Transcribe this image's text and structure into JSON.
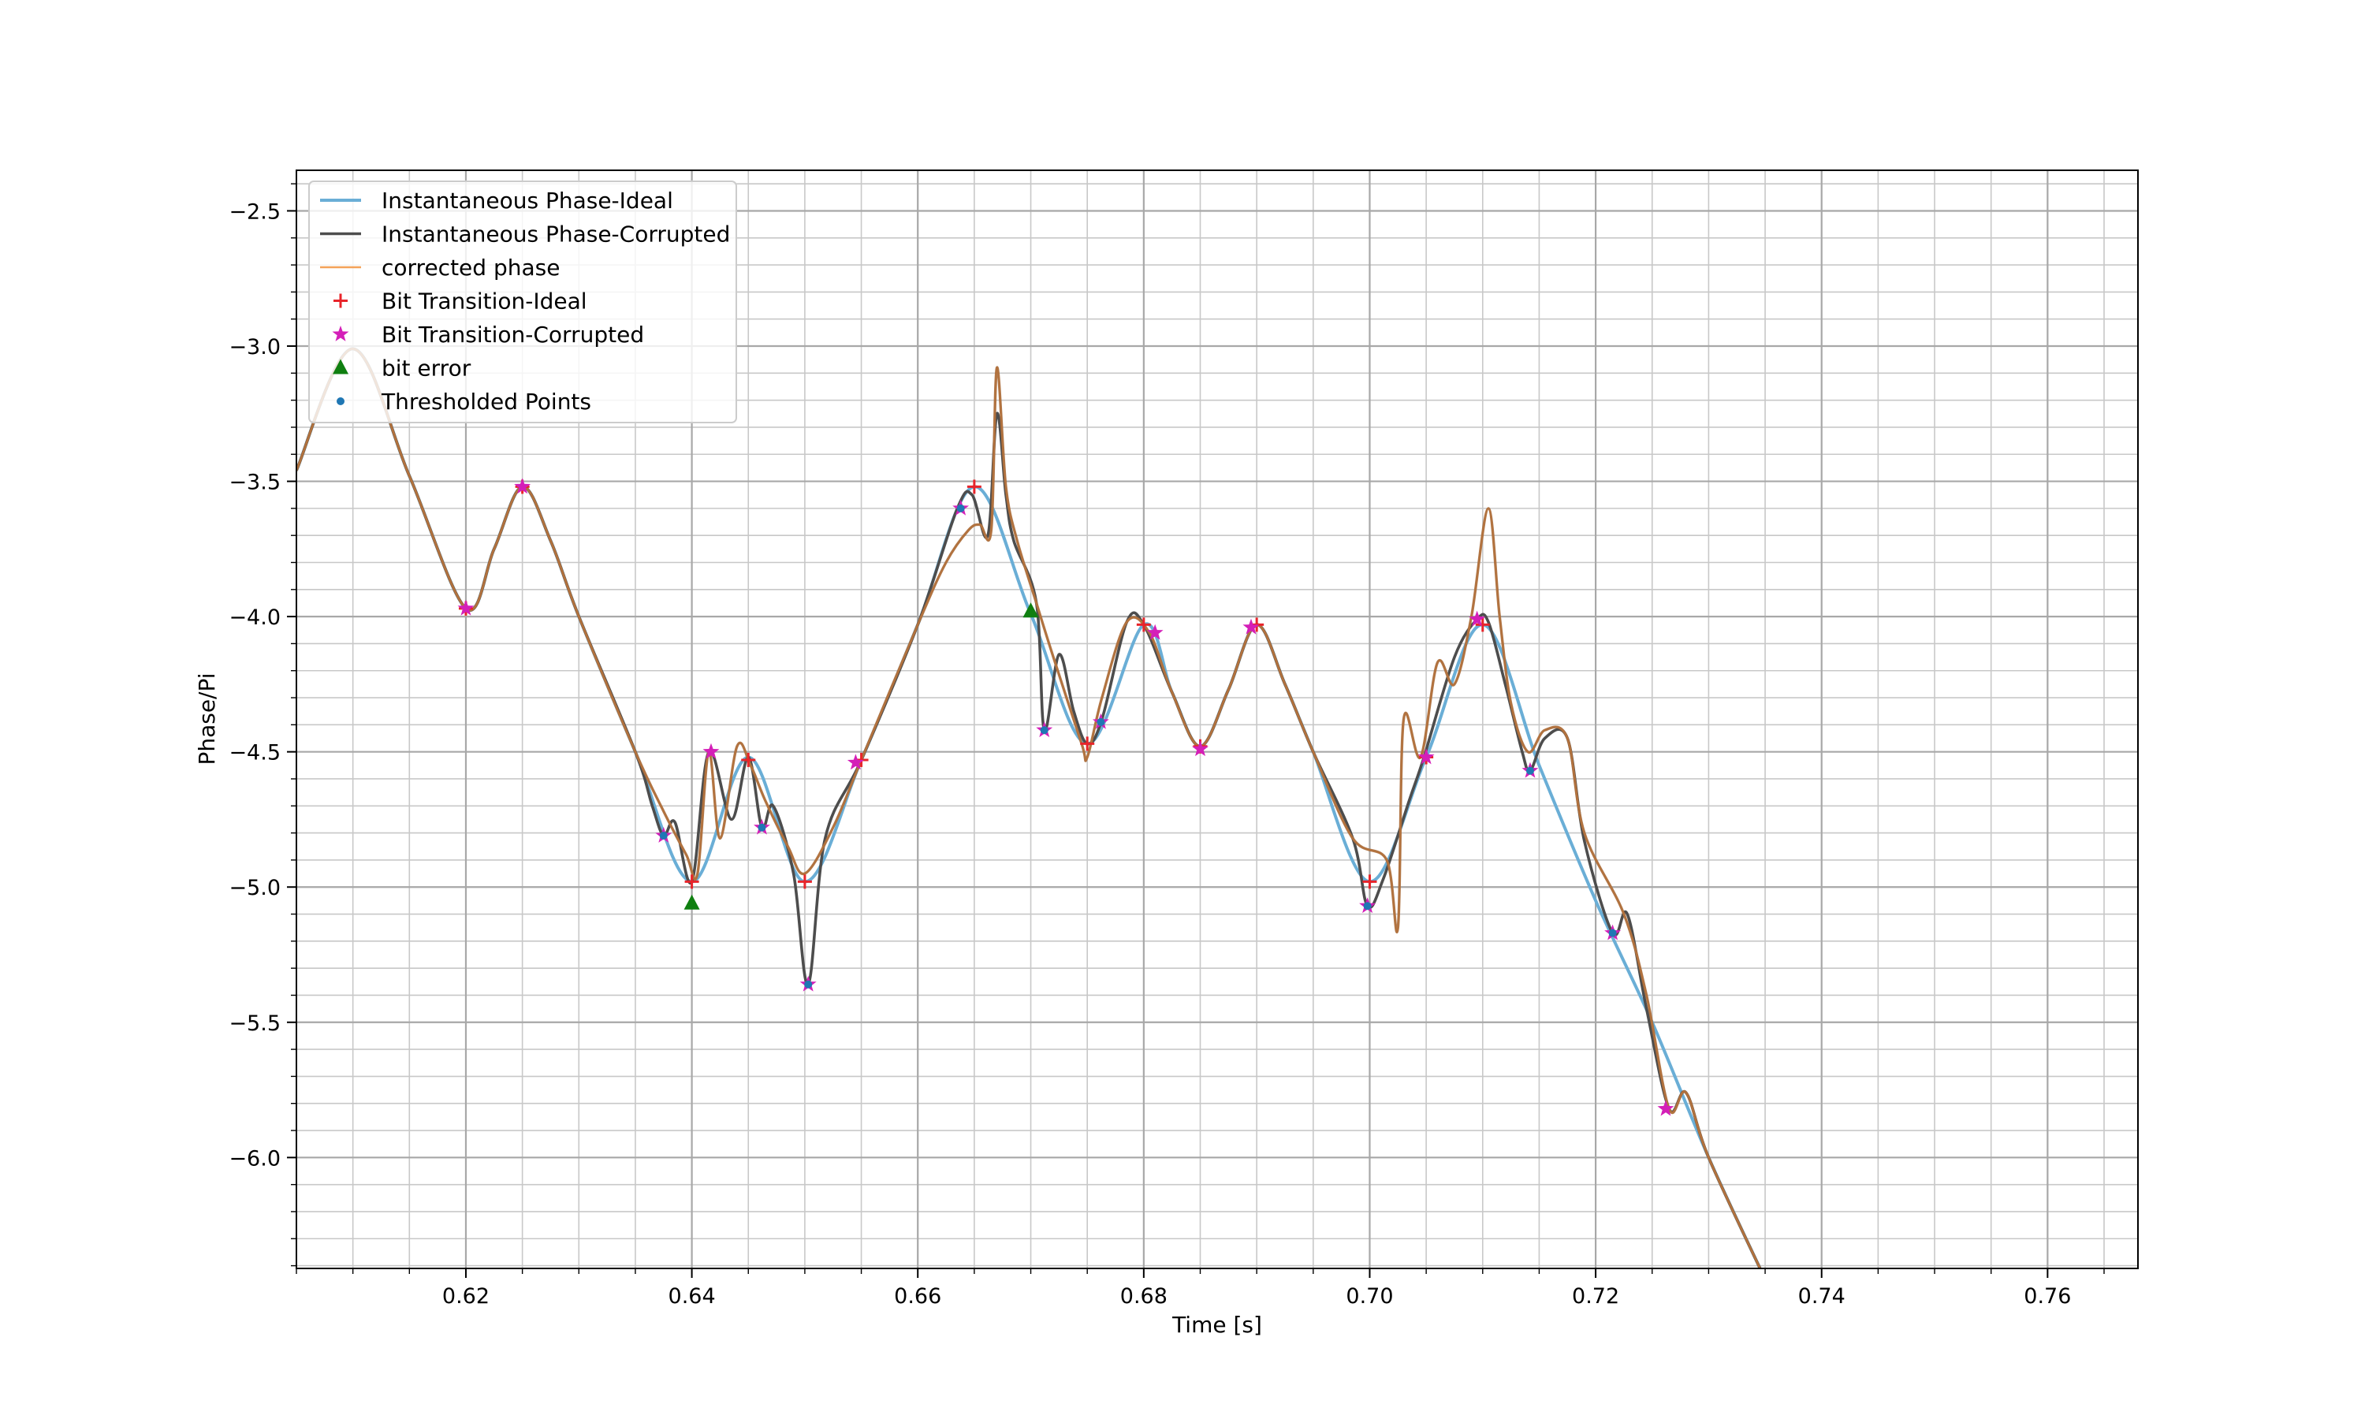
{
  "chart_data": {
    "type": "line",
    "title": "",
    "xlabel": "Time [s]",
    "ylabel": "Phase/Pi",
    "xlim": [
      0.605,
      0.768
    ],
    "ylim": [
      -6.41,
      -2.35
    ],
    "xticks": [
      0.62,
      0.64,
      0.66,
      0.68,
      0.7,
      0.72,
      0.74,
      0.76
    ],
    "xtick_labels": [
      "0.62",
      "0.64",
      "0.66",
      "0.68",
      "0.70",
      "0.72",
      "0.74",
      "0.76"
    ],
    "yticks": [
      -2.5,
      -3.0,
      -3.5,
      -4.0,
      -4.5,
      -5.0,
      -5.5,
      -6.0
    ],
    "ytick_labels": [
      "−2.5",
      "−3.0",
      "−3.5",
      "−4.0",
      "−4.5",
      "−5.0",
      "−5.5",
      "−6.0"
    ],
    "grid": "major and minor",
    "legend_position": "upper-left",
    "series": [
      {
        "name": "Instantaneous Phase-Ideal",
        "kind": "line",
        "color": "#6aaed6",
        "x": [
          0.605,
          0.61,
          0.615,
          0.62,
          0.6225,
          0.625,
          0.6275,
          0.63,
          0.635,
          0.64,
          0.645,
          0.65,
          0.655,
          0.66,
          0.665,
          0.67,
          0.675,
          0.68,
          0.6825,
          0.685,
          0.6875,
          0.69,
          0.6925,
          0.695,
          0.7,
          0.705,
          0.71,
          0.715,
          0.72,
          0.725,
          0.73,
          0.735
        ],
        "y": [
          -3.46,
          -3.01,
          -3.48,
          -3.97,
          -3.75,
          -3.52,
          -3.72,
          -4.0,
          -4.5,
          -4.98,
          -4.52,
          -4.98,
          -4.53,
          -4.03,
          -3.52,
          -3.99,
          -4.47,
          -4.03,
          -4.28,
          -4.48,
          -4.27,
          -4.03,
          -4.25,
          -4.5,
          -4.98,
          -4.52,
          -4.03,
          -4.55,
          -5.05,
          -5.5,
          -6.0,
          -6.45
        ]
      },
      {
        "name": "Instantaneous Phase-Corrupted",
        "kind": "line",
        "color": "#4d4d4d",
        "x": [
          0.605,
          0.61,
          0.615,
          0.62,
          0.6225,
          0.625,
          0.6275,
          0.63,
          0.635,
          0.6365,
          0.6375,
          0.6385,
          0.64,
          0.6415,
          0.6435,
          0.645,
          0.6462,
          0.6472,
          0.649,
          0.6503,
          0.6518,
          0.655,
          0.66,
          0.6635,
          0.6648,
          0.6662,
          0.667,
          0.6678,
          0.6685,
          0.6705,
          0.6712,
          0.6725,
          0.6738,
          0.675,
          0.6763,
          0.6785,
          0.68,
          0.6825,
          0.685,
          0.6875,
          0.69,
          0.6925,
          0.695,
          0.6985,
          0.6998,
          0.7012,
          0.7035,
          0.7048,
          0.7075,
          0.7095,
          0.7105,
          0.712,
          0.7135,
          0.7142,
          0.7155,
          0.7175,
          0.719,
          0.7215,
          0.7228,
          0.7245,
          0.7265,
          0.728,
          0.73,
          0.735
        ],
        "y": [
          -3.46,
          -3.01,
          -3.48,
          -3.97,
          -3.75,
          -3.52,
          -3.72,
          -4.0,
          -4.5,
          -4.7,
          -4.81,
          -4.76,
          -4.98,
          -4.5,
          -4.75,
          -4.52,
          -4.78,
          -4.7,
          -4.95,
          -5.36,
          -4.82,
          -4.53,
          -4.03,
          -3.6,
          -3.55,
          -3.7,
          -3.25,
          -3.55,
          -3.72,
          -3.95,
          -4.42,
          -4.14,
          -4.35,
          -4.47,
          -4.38,
          -4.02,
          -4.03,
          -4.28,
          -4.48,
          -4.27,
          -4.03,
          -4.25,
          -4.5,
          -4.82,
          -5.07,
          -4.97,
          -4.68,
          -4.52,
          -4.15,
          -4.01,
          -4.02,
          -4.25,
          -4.5,
          -4.57,
          -4.45,
          -4.45,
          -4.83,
          -5.17,
          -5.1,
          -5.45,
          -5.82,
          -5.76,
          -6.0,
          -6.45
        ]
      },
      {
        "name": "corrected phase",
        "kind": "line",
        "color": "#f4a259",
        "x": [
          0.605,
          0.61,
          0.615,
          0.62,
          0.6225,
          0.625,
          0.6275,
          0.63,
          0.635,
          0.6375,
          0.6395,
          0.6405,
          0.6415,
          0.6425,
          0.644,
          0.6452,
          0.6465,
          0.6485,
          0.65,
          0.6525,
          0.655,
          0.66,
          0.6625,
          0.6645,
          0.6655,
          0.6665,
          0.667,
          0.6678,
          0.6688,
          0.6705,
          0.672,
          0.6745,
          0.675,
          0.6763,
          0.6785,
          0.6805,
          0.6825,
          0.685,
          0.6875,
          0.69,
          0.6925,
          0.695,
          0.6985,
          0.7015,
          0.7025,
          0.703,
          0.7045,
          0.706,
          0.7075,
          0.709,
          0.7105,
          0.7115,
          0.7125,
          0.714,
          0.7155,
          0.7175,
          0.719,
          0.7225,
          0.7245,
          0.7265,
          0.728,
          0.73,
          0.735
        ],
        "y": [
          -3.46,
          -3.01,
          -3.48,
          -3.97,
          -3.75,
          -3.52,
          -3.72,
          -4.0,
          -4.5,
          -4.72,
          -4.88,
          -4.95,
          -4.5,
          -4.82,
          -4.48,
          -4.55,
          -4.68,
          -4.85,
          -4.95,
          -4.78,
          -4.53,
          -4.03,
          -3.8,
          -3.68,
          -3.66,
          -3.68,
          -3.08,
          -3.52,
          -3.72,
          -3.95,
          -4.15,
          -4.47,
          -4.52,
          -4.3,
          -4.02,
          -4.06,
          -4.28,
          -4.48,
          -4.27,
          -4.03,
          -4.25,
          -4.5,
          -4.82,
          -4.9,
          -5.15,
          -4.38,
          -4.52,
          -4.17,
          -4.25,
          -4.0,
          -3.6,
          -4.0,
          -4.32,
          -4.5,
          -4.42,
          -4.45,
          -4.8,
          -5.1,
          -5.4,
          -5.82,
          -5.76,
          -6.0,
          -6.45
        ]
      },
      {
        "name": "Bit Transition-Ideal",
        "kind": "markers",
        "marker": "plus",
        "color": "#e8242a",
        "x": [
          0.62,
          0.625,
          0.64,
          0.645,
          0.65,
          0.655,
          0.665,
          0.675,
          0.68,
          0.685,
          0.69,
          0.7,
          0.705,
          0.71
        ],
        "y": [
          -3.97,
          -3.52,
          -4.98,
          -4.53,
          -4.98,
          -4.53,
          -3.52,
          -4.47,
          -4.03,
          -4.48,
          -4.03,
          -4.98,
          -4.52,
          -4.03
        ]
      },
      {
        "name": "Bit Transition-Corrupted",
        "kind": "markers",
        "marker": "star",
        "color": "#d41fb8",
        "x": [
          0.62,
          0.625,
          0.6375,
          0.6417,
          0.6462,
          0.6503,
          0.6545,
          0.6638,
          0.6712,
          0.6762,
          0.681,
          0.685,
          0.6895,
          0.6998,
          0.705,
          0.7095,
          0.7142,
          0.7215,
          0.7262
        ],
        "y": [
          -3.97,
          -3.52,
          -4.81,
          -4.5,
          -4.78,
          -5.36,
          -4.54,
          -3.6,
          -4.42,
          -4.39,
          -4.06,
          -4.49,
          -4.04,
          -5.07,
          -4.52,
          -4.01,
          -4.57,
          -5.17,
          -5.82
        ]
      },
      {
        "name": "bit error",
        "kind": "markers",
        "marker": "triangle",
        "color": "#0f7f10",
        "x": [
          0.64,
          0.67
        ],
        "y": [
          -5.06,
          -3.98
        ]
      },
      {
        "name": "Thresholded Points",
        "kind": "markers",
        "marker": "dot",
        "color": "#1f77b4",
        "x": [
          0.6375,
          0.6462,
          0.6503,
          0.6638,
          0.6712,
          0.6762,
          0.6998,
          0.7142,
          0.7215
        ],
        "y": [
          -4.81,
          -4.78,
          -5.36,
          -3.6,
          -4.42,
          -4.39,
          -5.07,
          -4.57,
          -5.17
        ]
      }
    ]
  }
}
